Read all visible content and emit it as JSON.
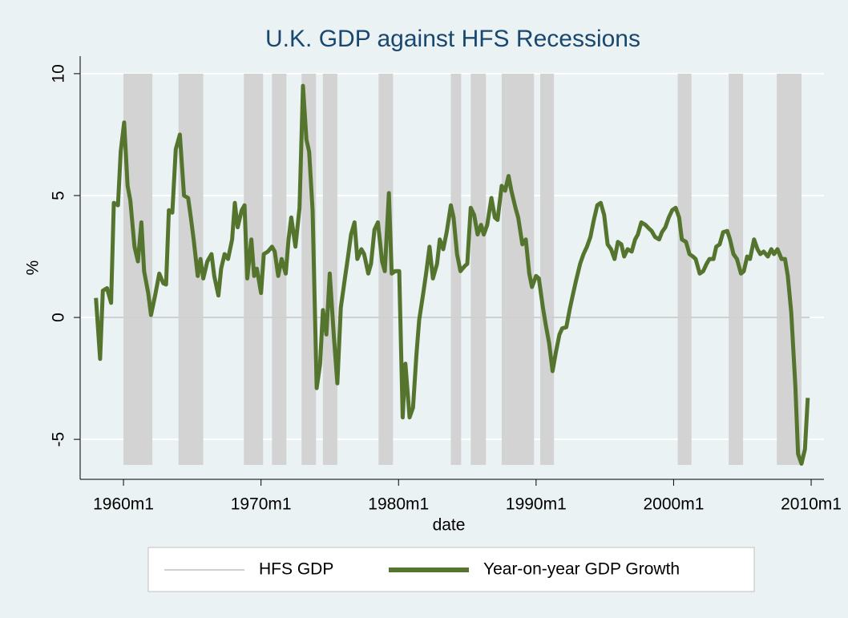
{
  "chart_data": {
    "type": "line",
    "title": "U.K. GDP against HFS Recessions",
    "x_label": "date",
    "y_label": "%",
    "xlim": [
      1956.85,
      2010.93
    ],
    "ylim": [
      -6.64,
      10.72
    ],
    "xticks": [
      {
        "value": 1960,
        "label": "1960m1"
      },
      {
        "value": 1970,
        "label": "1970m1"
      },
      {
        "value": 1980,
        "label": "1980m1"
      },
      {
        "value": 1990,
        "label": "1990m1"
      },
      {
        "value": 2000,
        "label": "2000m1"
      },
      {
        "value": 2010,
        "label": "2010m1"
      }
    ],
    "yticks": [
      -5,
      0,
      5,
      10
    ],
    "grid": true,
    "recession_band": [
      -6.05,
      10
    ],
    "recession_color": "#d3d3d3",
    "recessions": [
      [
        1960.0,
        1962.1
      ],
      [
        1964.0,
        1965.8
      ],
      [
        1968.75,
        1970.15
      ],
      [
        1970.8,
        1971.85
      ],
      [
        1972.95,
        1974.0
      ],
      [
        1974.5,
        1975.55
      ],
      [
        1978.55,
        1979.6
      ],
      [
        1983.8,
        1984.55
      ],
      [
        1985.25,
        1986.35
      ],
      [
        1987.5,
        1989.85
      ],
      [
        1990.3,
        1991.3
      ],
      [
        2000.3,
        2001.3
      ],
      [
        2004.0,
        2005.05
      ],
      [
        2007.5,
        2009.3
      ]
    ],
    "legend": "bottom",
    "series": [
      {
        "name": "HFS GDP",
        "color": "#d0d0d0",
        "x": [
          1958.0,
          2009.9
        ],
        "values": [
          0,
          0
        ]
      },
      {
        "name": "Year-on-year GDP Growth",
        "color": "#55752f",
        "x": [
          1958.0,
          1958.3,
          1958.5,
          1958.8,
          1959.1,
          1959.3,
          1959.6,
          1959.8,
          1960.05,
          1960.3,
          1960.5,
          1960.8,
          1961.05,
          1961.3,
          1961.5,
          1961.8,
          1962.0,
          1962.3,
          1962.6,
          1962.9,
          1963.1,
          1963.3,
          1963.55,
          1963.8,
          1964.1,
          1964.4,
          1964.7,
          1964.9,
          1965.1,
          1965.4,
          1965.6,
          1965.8,
          1966.1,
          1966.4,
          1966.6,
          1966.9,
          1967.1,
          1967.35,
          1967.6,
          1967.9,
          1968.1,
          1968.3,
          1968.6,
          1968.8,
          1969.0,
          1969.3,
          1969.5,
          1969.7,
          1970.0,
          1970.2,
          1970.5,
          1970.8,
          1971.0,
          1971.25,
          1971.5,
          1971.8,
          1972.0,
          1972.2,
          1972.5,
          1972.8,
          1973.05,
          1973.3,
          1973.5,
          1973.75,
          1974.05,
          1974.3,
          1974.5,
          1974.75,
          1975.0,
          1975.3,
          1975.55,
          1975.8,
          1976.1,
          1976.3,
          1976.55,
          1976.8,
          1977.0,
          1977.3,
          1977.5,
          1977.8,
          1978.0,
          1978.25,
          1978.5,
          1978.8,
          1979.0,
          1979.3,
          1979.5,
          1979.75,
          1980.05,
          1980.3,
          1980.5,
          1980.8,
          1981.05,
          1981.3,
          1981.5,
          1981.8,
          1982.0,
          1982.25,
          1982.5,
          1982.8,
          1983.0,
          1983.25,
          1983.5,
          1983.8,
          1984.0,
          1984.25,
          1984.5,
          1984.8,
          1985.0,
          1985.25,
          1985.5,
          1985.75,
          1986.0,
          1986.2,
          1986.45,
          1986.75,
          1987.0,
          1987.2,
          1987.5,
          1987.75,
          1988.0,
          1988.2,
          1988.5,
          1988.7,
          1989.0,
          1989.25,
          1989.5,
          1989.7,
          1990.0,
          1990.2,
          1990.5,
          1990.7,
          1990.95,
          1991.2,
          1991.45,
          1991.7,
          1991.9,
          1992.2,
          1992.45,
          1992.7,
          1992.9,
          1993.2,
          1993.45,
          1993.7,
          1993.95,
          1994.2,
          1994.45,
          1994.7,
          1994.95,
          1995.2,
          1995.45,
          1995.7,
          1995.95,
          1996.2,
          1996.4,
          1996.65,
          1996.95,
          1997.2,
          1997.4,
          1997.65,
          1997.95,
          1998.2,
          1998.4,
          1998.65,
          1998.95,
          1999.15,
          1999.4,
          1999.65,
          1999.9,
          2000.15,
          2000.4,
          2000.6,
          2000.9,
          2001.15,
          2001.4,
          2001.6,
          2001.9,
          2002.15,
          2002.4,
          2002.6,
          2002.9,
          2003.1,
          2003.35,
          2003.6,
          2003.9,
          2004.1,
          2004.35,
          2004.6,
          2004.9,
          2005.1,
          2005.35,
          2005.55,
          2005.85,
          2006.1,
          2006.3,
          2006.55,
          2006.85,
          2007.1,
          2007.3,
          2007.55,
          2007.85,
          2008.1,
          2008.3,
          2008.55,
          2008.85,
          2009.05,
          2009.3,
          2009.55,
          2009.75
        ],
        "values": [
          0.8,
          -1.7,
          1.1,
          1.2,
          0.6,
          4.7,
          4.6,
          6.8,
          8.0,
          5.4,
          4.8,
          2.9,
          2.3,
          3.9,
          1.9,
          1.0,
          0.1,
          0.9,
          1.8,
          1.4,
          1.35,
          4.4,
          4.3,
          6.9,
          7.5,
          5.0,
          4.9,
          4.1,
          3.2,
          1.7,
          2.4,
          1.6,
          2.3,
          2.6,
          1.7,
          0.9,
          2.0,
          2.6,
          2.4,
          3.2,
          4.7,
          3.7,
          4.4,
          4.6,
          1.6,
          3.2,
          1.7,
          2.0,
          1.0,
          2.6,
          2.7,
          2.9,
          2.7,
          1.7,
          2.4,
          1.8,
          3.2,
          4.1,
          2.9,
          4.5,
          9.5,
          7.3,
          6.8,
          4.4,
          -2.9,
          -1.9,
          0.3,
          -0.7,
          1.8,
          -0.8,
          -2.7,
          0.4,
          1.6,
          2.4,
          3.4,
          3.9,
          2.4,
          2.8,
          2.6,
          1.8,
          2.2,
          3.6,
          3.9,
          2.3,
          1.9,
          5.1,
          1.8,
          1.9,
          1.9,
          -4.1,
          -1.9,
          -4.1,
          -3.7,
          -1.5,
          -0.1,
          1.0,
          1.8,
          2.9,
          1.6,
          2.2,
          3.2,
          2.8,
          3.5,
          4.6,
          4.1,
          2.6,
          1.9,
          2.1,
          2.2,
          4.5,
          4.2,
          3.4,
          3.8,
          3.4,
          3.8,
          4.9,
          4.1,
          4.0,
          5.4,
          5.2,
          5.8,
          5.2,
          4.5,
          4.1,
          3.0,
          3.2,
          1.8,
          1.25,
          1.7,
          1.6,
          0.4,
          -0.3,
          -1.05,
          -2.2,
          -1.4,
          -0.7,
          -0.45,
          -0.4,
          0.35,
          1.0,
          1.5,
          2.2,
          2.6,
          2.9,
          3.3,
          4.0,
          4.6,
          4.7,
          4.2,
          3.0,
          2.8,
          2.4,
          3.1,
          3.0,
          2.5,
          2.8,
          2.7,
          3.2,
          3.4,
          3.9,
          3.8,
          3.65,
          3.55,
          3.3,
          3.2,
          3.5,
          3.7,
          4.1,
          4.4,
          4.5,
          4.1,
          3.2,
          3.1,
          2.6,
          2.5,
          2.4,
          1.8,
          1.9,
          2.2,
          2.4,
          2.4,
          2.9,
          3.0,
          3.5,
          3.55,
          3.2,
          2.6,
          2.4,
          1.8,
          1.9,
          2.5,
          2.4,
          3.2,
          2.8,
          2.6,
          2.7,
          2.5,
          2.8,
          2.6,
          2.8,
          2.4,
          2.4,
          1.7,
          0.2,
          -2.8,
          -5.6,
          -6.0,
          -5.4,
          -3.3
        ]
      }
    ]
  }
}
